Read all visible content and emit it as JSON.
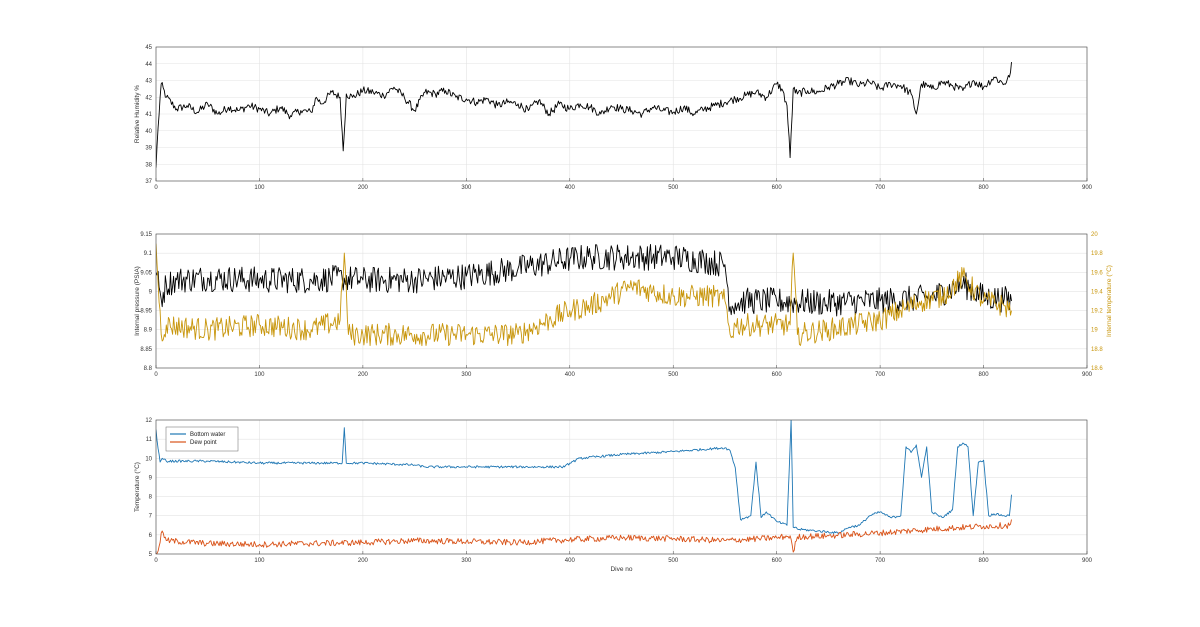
{
  "chart_data": [
    {
      "type": "line",
      "title": "",
      "xlabel": "",
      "ylabel": "Relative Humidity %",
      "xlim": [
        0,
        900
      ],
      "ylim": [
        37,
        45
      ],
      "x_ticks": [
        0,
        100,
        200,
        300,
        400,
        500,
        600,
        700,
        800,
        900
      ],
      "y_ticks": [
        37,
        38,
        39,
        40,
        41,
        42,
        43,
        44,
        45
      ],
      "grid": true,
      "series": [
        {
          "color": "#000000",
          "x": [
            0,
            2,
            5,
            10,
            20,
            30,
            40,
            50,
            60,
            70,
            80,
            90,
            100,
            110,
            120,
            130,
            140,
            150,
            155,
            160,
            170,
            178,
            181,
            184,
            190,
            200,
            210,
            220,
            230,
            240,
            250,
            260,
            270,
            280,
            290,
            300,
            310,
            320,
            330,
            340,
            350,
            360,
            370,
            380,
            390,
            400,
            410,
            420,
            430,
            440,
            450,
            460,
            470,
            480,
            490,
            500,
            510,
            520,
            530,
            540,
            550,
            560,
            570,
            580,
            590,
            600,
            605,
            610,
            613,
            616,
            620,
            630,
            640,
            650,
            660,
            670,
            680,
            690,
            700,
            710,
            720,
            730,
            735,
            740,
            750,
            760,
            770,
            780,
            790,
            800,
            810,
            820,
            825,
            827
          ],
          "y": [
            37.8,
            40.2,
            42.8,
            42.0,
            41.3,
            41.5,
            41.1,
            41.6,
            41.0,
            41.4,
            41.2,
            41.5,
            41.3,
            41.0,
            41.4,
            40.9,
            41.2,
            41.1,
            42.0,
            41.6,
            42.3,
            42.0,
            38.8,
            42.2,
            42.0,
            42.4,
            42.3,
            42.1,
            42.6,
            42.0,
            41.2,
            42.3,
            42.2,
            42.4,
            42.0,
            41.9,
            41.7,
            41.9,
            41.5,
            41.7,
            41.6,
            41.2,
            41.8,
            41.0,
            41.6,
            41.3,
            41.6,
            41.4,
            41.0,
            41.5,
            41.3,
            41.2,
            41.0,
            41.4,
            41.2,
            41.1,
            41.4,
            41.0,
            41.3,
            41.5,
            41.7,
            41.9,
            42.1,
            42.3,
            42.0,
            42.8,
            42.5,
            41.5,
            38.4,
            42.5,
            42.2,
            42.4,
            42.3,
            42.6,
            42.8,
            43.0,
            42.7,
            42.9,
            42.5,
            42.8,
            42.7,
            42.2,
            41.0,
            42.8,
            42.5,
            42.9,
            42.7,
            42.4,
            43.0,
            42.6,
            43.2,
            42.8,
            43.2,
            44.1
          ]
        }
      ]
    },
    {
      "type": "line",
      "title": "",
      "xlabel": "",
      "ylabel": "Internal pressure (PSIA)",
      "ylabel_right": "Internal temperature (°C)",
      "xlim": [
        0,
        900
      ],
      "ylim": [
        8.8,
        9.15
      ],
      "ylim_right": [
        18.6,
        20
      ],
      "x_ticks": [
        0,
        100,
        200,
        300,
        400,
        500,
        600,
        700,
        800,
        900
      ],
      "y_ticks": [
        8.8,
        8.85,
        8.9,
        8.95,
        9,
        9.05,
        9.1,
        9.15
      ],
      "y_ticks_right": [
        18.6,
        18.8,
        19,
        19.2,
        19.4,
        19.6,
        19.8,
        20
      ],
      "grid": true,
      "series": [
        {
          "color": "#000000",
          "axis": "left",
          "x": [
            0,
            5,
            10,
            20,
            50,
            100,
            150,
            180,
            200,
            250,
            300,
            350,
            400,
            420,
            450,
            500,
            530,
            550,
            555,
            560,
            570,
            600,
            650,
            700,
            730,
            750,
            780,
            800,
            820,
            827
          ],
          "y": [
            9.05,
            8.98,
            9.02,
            9.03,
            9.035,
            9.03,
            9.03,
            9.035,
            9.03,
            9.03,
            9.04,
            9.06,
            9.085,
            9.09,
            9.09,
            9.09,
            9.08,
            9.07,
            8.96,
            8.97,
            8.975,
            8.975,
            8.97,
            8.975,
            8.98,
            8.985,
            9.02,
            8.985,
            8.98,
            8.975
          ],
          "osc": 0.035
        },
        {
          "color": "#C8960C",
          "axis": "right",
          "x": [
            0,
            5,
            10,
            50,
            100,
            150,
            178,
            182,
            186,
            200,
            250,
            300,
            350,
            380,
            400,
            420,
            440,
            460,
            480,
            500,
            520,
            540,
            550,
            555,
            560,
            580,
            600,
            613,
            616,
            620,
            650,
            700,
            720,
            740,
            760,
            780,
            800,
            820,
            827
          ],
          "y": [
            19.9,
            18.95,
            19.05,
            19.0,
            19.05,
            19.0,
            19.1,
            19.8,
            18.95,
            18.95,
            18.95,
            18.95,
            18.95,
            19.1,
            19.2,
            19.25,
            19.35,
            19.45,
            19.4,
            19.35,
            19.35,
            19.35,
            19.3,
            18.95,
            19.05,
            19.05,
            19.05,
            19.05,
            19.8,
            18.95,
            19.0,
            19.1,
            19.2,
            19.3,
            19.35,
            19.55,
            19.3,
            19.25,
            19.2
          ],
          "osc": 0.12
        }
      ]
    },
    {
      "type": "line",
      "title": "",
      "xlabel": "Dive no",
      "ylabel": "Temperature (°C)",
      "xlim": [
        0,
        900
      ],
      "ylim": [
        5,
        12
      ],
      "x_ticks": [
        0,
        100,
        200,
        300,
        400,
        500,
        600,
        700,
        800,
        900
      ],
      "y_ticks": [
        5,
        6,
        7,
        8,
        9,
        10,
        11,
        12
      ],
      "grid": true,
      "legend": "top-left",
      "series": [
        {
          "name": "Bottom water",
          "color": "#1F77B4",
          "x": [
            0,
            2,
            4,
            6,
            10,
            50,
            100,
            150,
            180,
            182,
            184,
            200,
            250,
            260,
            300,
            350,
            395,
            400,
            410,
            450,
            500,
            550,
            555,
            560,
            565,
            570,
            575,
            580,
            585,
            590,
            600,
            610,
            614,
            616,
            618,
            620,
            640,
            660,
            670,
            680,
            690,
            700,
            710,
            720,
            725,
            730,
            735,
            740,
            745,
            750,
            760,
            770,
            775,
            780,
            785,
            790,
            795,
            800,
            805,
            810,
            820,
            825,
            827
          ],
          "y": [
            11.5,
            10.5,
            9.8,
            10.0,
            9.85,
            9.85,
            9.75,
            9.75,
            9.75,
            11.6,
            9.75,
            9.75,
            9.65,
            9.55,
            9.55,
            9.55,
            9.55,
            9.75,
            10.0,
            10.2,
            10.35,
            10.55,
            10.4,
            9.5,
            6.8,
            6.9,
            7.0,
            9.8,
            6.9,
            7.2,
            6.7,
            6.5,
            12.0,
            6.4,
            6.4,
            6.3,
            6.2,
            6.1,
            6.4,
            6.5,
            7.0,
            7.2,
            6.9,
            7.0,
            10.6,
            10.3,
            10.7,
            9.0,
            10.6,
            7.2,
            6.9,
            7.3,
            10.6,
            10.8,
            10.6,
            7.0,
            9.8,
            9.9,
            7.0,
            7.1,
            7.0,
            7.0,
            8.1
          ],
          "osc": 0.06
        },
        {
          "name": "Dew point",
          "color": "#D95319",
          "x": [
            0,
            3,
            6,
            10,
            50,
            100,
            150,
            200,
            250,
            300,
            350,
            400,
            450,
            500,
            550,
            600,
            613,
            616,
            620,
            650,
            700,
            750,
            800,
            825,
            827
          ],
          "y": [
            5.0,
            5.4,
            6.2,
            5.7,
            5.55,
            5.5,
            5.55,
            5.6,
            5.7,
            5.65,
            5.6,
            5.75,
            5.85,
            5.8,
            5.7,
            5.85,
            5.95,
            5.1,
            5.9,
            5.95,
            6.1,
            6.3,
            6.45,
            6.5,
            6.8
          ],
          "osc": 0.16
        }
      ]
    }
  ]
}
